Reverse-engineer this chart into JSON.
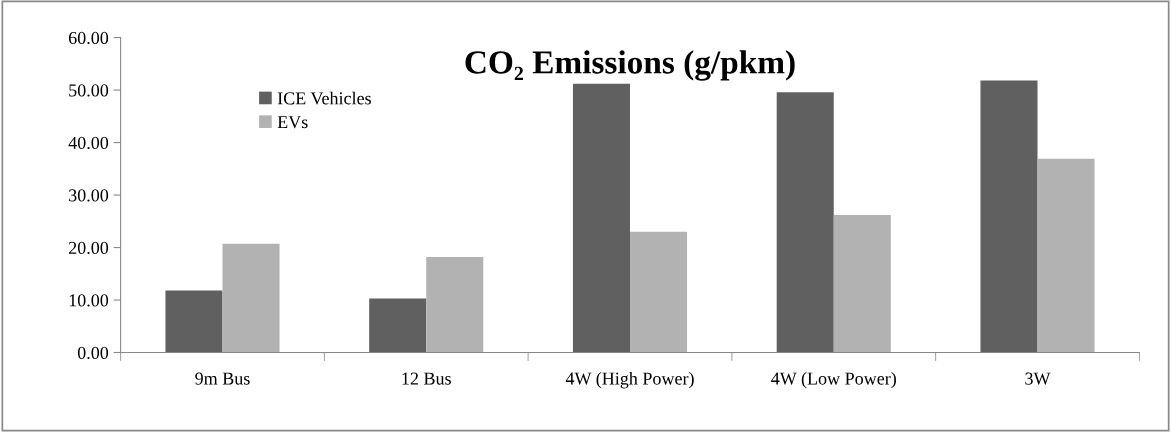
{
  "chart_data": {
    "type": "bar",
    "title": "CO₂ Emissions (g/pkm)",
    "categories": [
      "9m Bus",
      "12 Bus",
      "4W (High Power)",
      "4W (Low Power)",
      "3W"
    ],
    "series": [
      {
        "name": "ICE Vehicles",
        "color": "#606060",
        "values": [
          11.8,
          10.3,
          51.2,
          49.6,
          51.8
        ]
      },
      {
        "name": "EVs",
        "color": "#b2b2b2",
        "values": [
          20.7,
          18.2,
          23.0,
          26.2,
          36.9
        ]
      }
    ],
    "ylim": [
      0,
      60
    ],
    "yticks": [
      {
        "value": 0,
        "label": "0.00"
      },
      {
        "value": 10,
        "label": "10.00"
      },
      {
        "value": 20,
        "label": "20.00"
      },
      {
        "value": 30,
        "label": "30.00"
      },
      {
        "value": 40,
        "label": "40.00"
      },
      {
        "value": 50,
        "label": "50.00"
      },
      {
        "value": 60,
        "label": "60.00"
      }
    ],
    "grid": false,
    "legend": "top left"
  }
}
